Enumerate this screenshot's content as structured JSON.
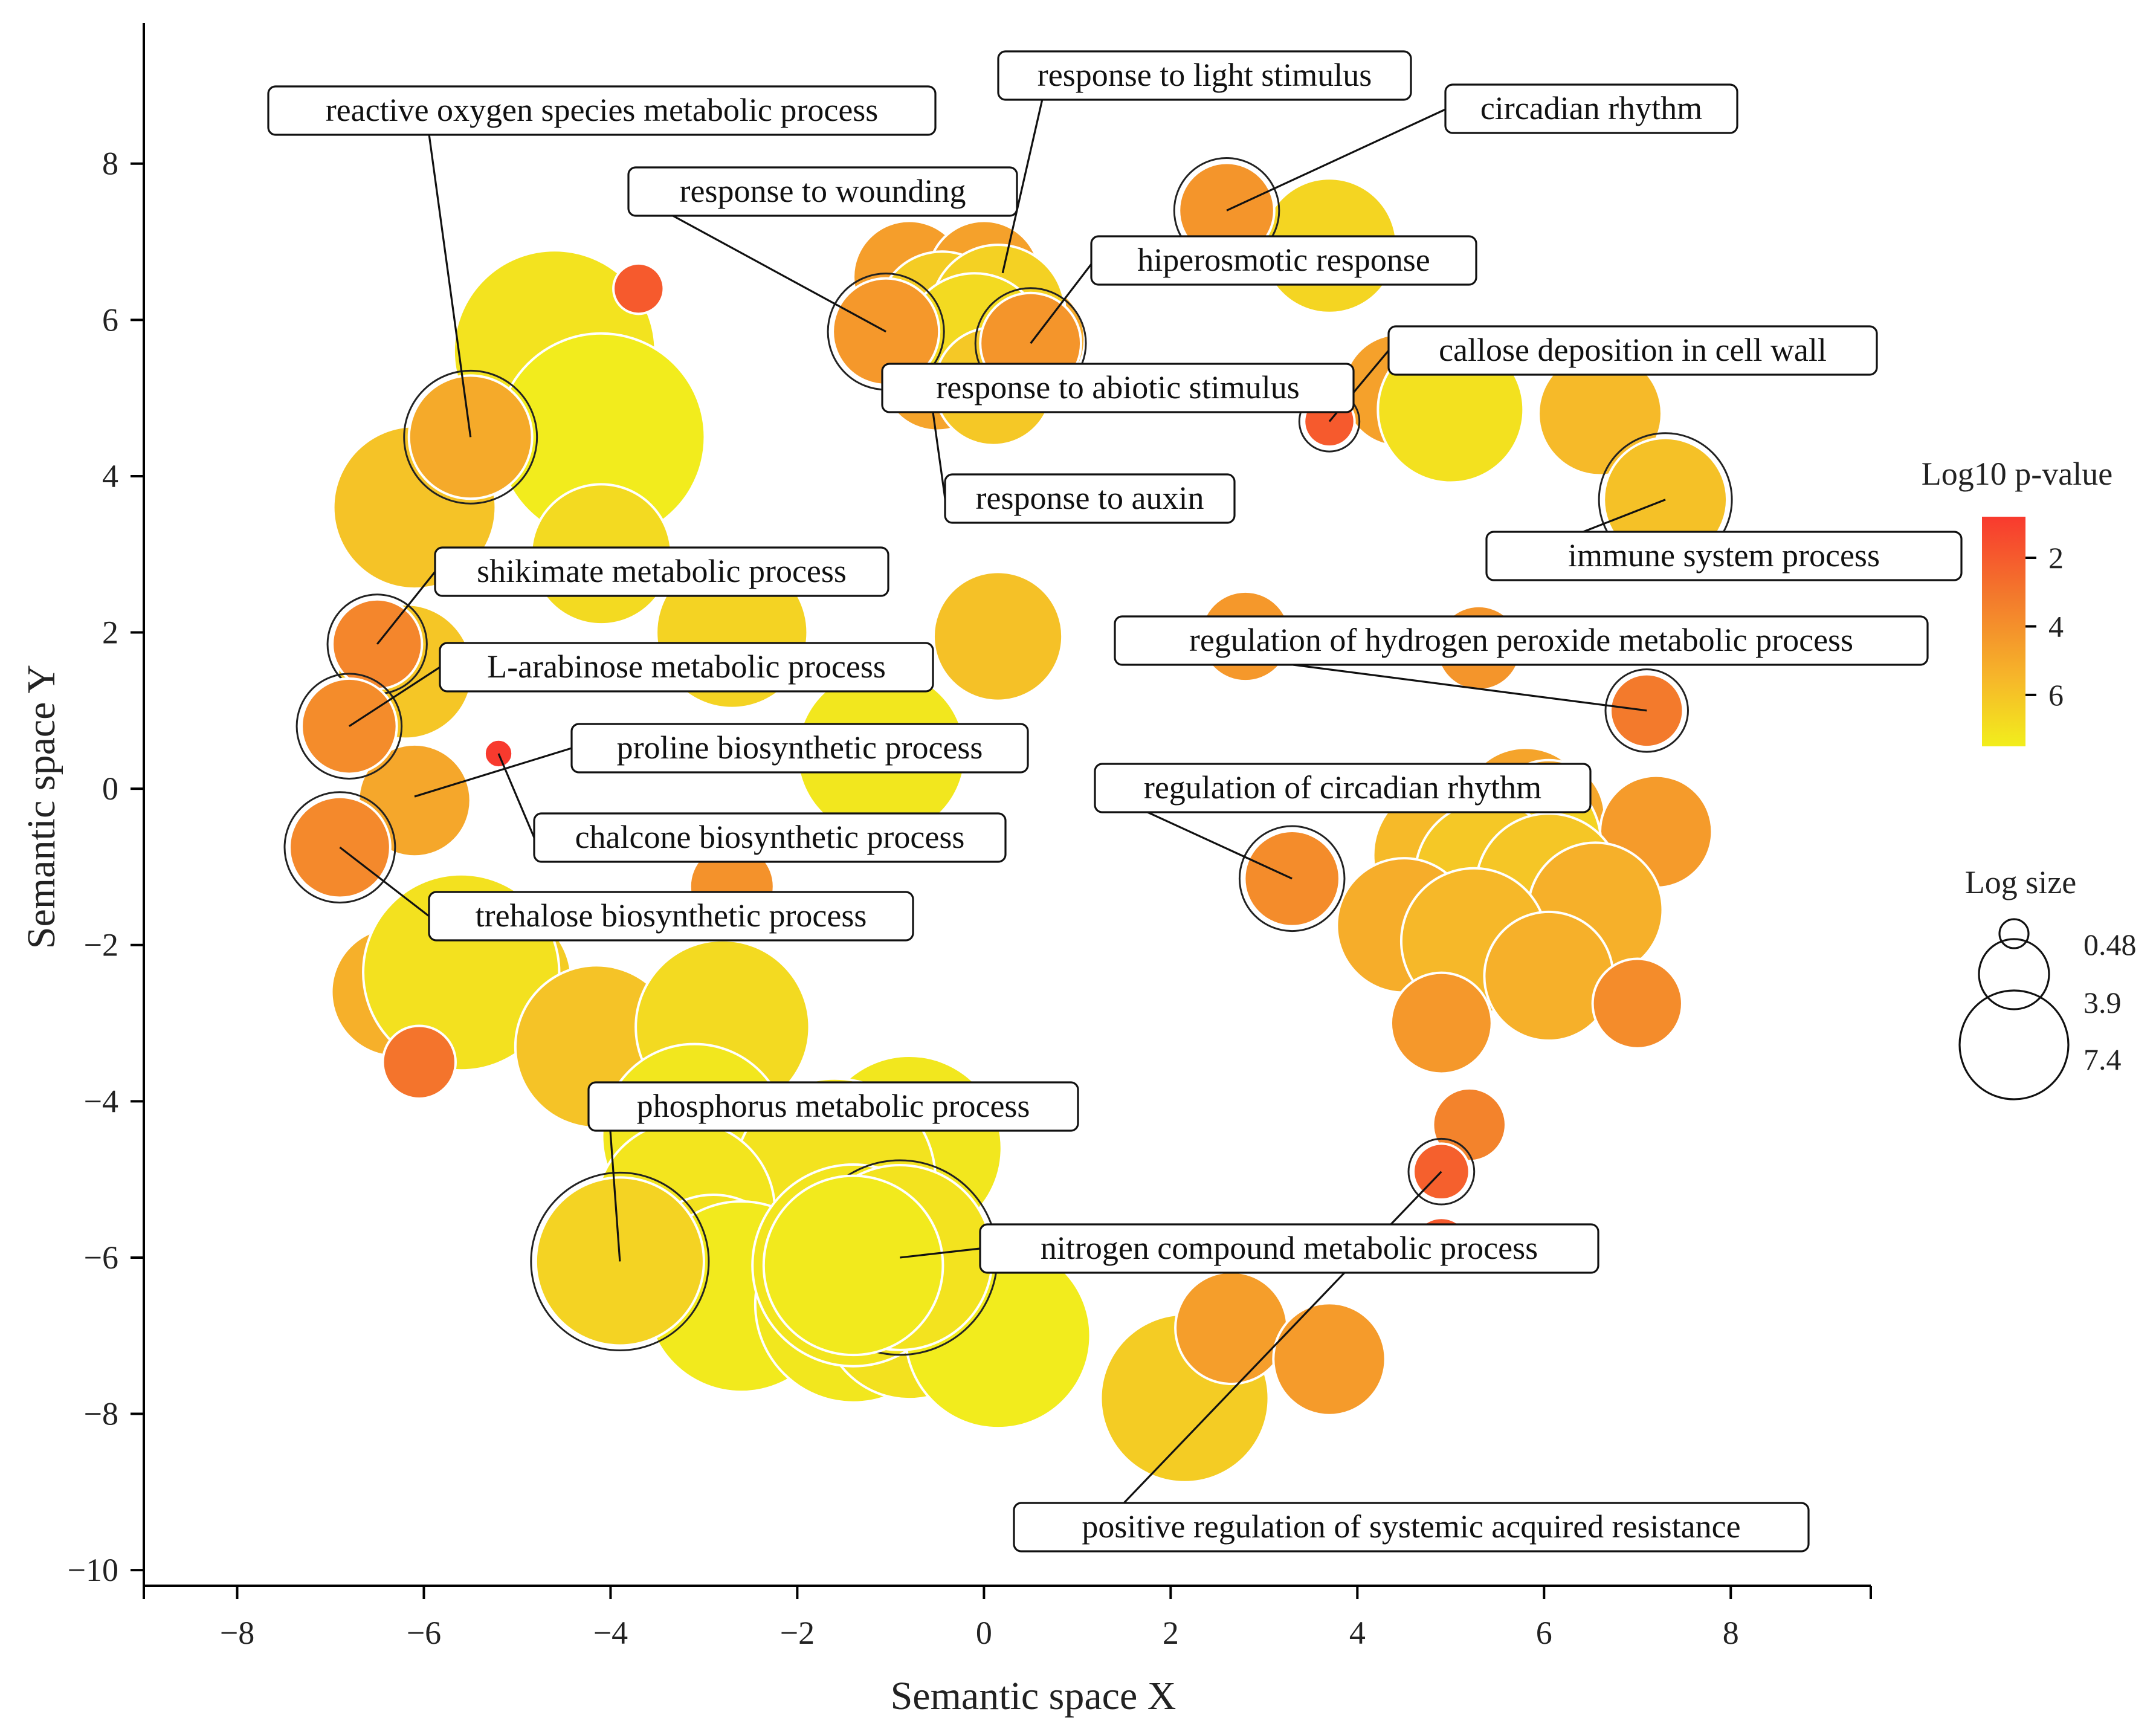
{
  "chart_data": {
    "type": "scatter",
    "subtype": "bubble",
    "xlabel": "Semantic space X",
    "ylabel": "Semantic space Y",
    "xlim": [
      -9,
      9.5
    ],
    "ylim": [
      -10.2,
      9.8
    ],
    "xticks": [
      -8,
      -6,
      -4,
      -2,
      0,
      2,
      4,
      6,
      8
    ],
    "yticks": [
      8,
      6,
      4,
      2,
      0,
      -2,
      -4,
      -6,
      -8,
      -10
    ],
    "xtick_labels": [
      "−8",
      "−6",
      "−4",
      "−2",
      "0",
      "2",
      "4",
      "6",
      "8"
    ],
    "ytick_labels": [
      "8",
      "6",
      "4",
      "2",
      "0",
      "−2",
      "−4",
      "−6",
      "−8",
      "−10"
    ],
    "color_legend": {
      "title": "Log10 p-value",
      "min": 0.8,
      "max": 7.5,
      "ticks": [
        2,
        4,
        6
      ],
      "tick_labels": [
        "2",
        "4",
        "6"
      ]
    },
    "size_legend": {
      "title": "Log size",
      "values": [
        0.48,
        3.9,
        7.4
      ],
      "labels": [
        "0.48",
        "3.9",
        "7.4"
      ]
    },
    "points": [
      {
        "x": -4.6,
        "y": 5.6,
        "r": 3.6,
        "p": 7.0
      },
      {
        "x": -4.1,
        "y": 4.5,
        "r": 3.7,
        "p": 7.4
      },
      {
        "x": -3.7,
        "y": 6.4,
        "r": 0.9,
        "p": 2.0
      },
      {
        "x": -6.1,
        "y": 3.6,
        "r": 2.9,
        "p": 5.6
      },
      {
        "x": -4.1,
        "y": 3.0,
        "r": 2.5,
        "p": 6.6
      },
      {
        "x": -2.7,
        "y": 2.0,
        "r": 2.7,
        "p": 6.3
      },
      {
        "x": 0.15,
        "y": 1.95,
        "r": 2.3,
        "p": 5.5
      },
      {
        "x": -1.1,
        "y": 0.45,
        "r": 3.0,
        "p": 7.2
      },
      {
        "x": -6.2,
        "y": 1.5,
        "r": 2.4,
        "p": 5.7
      },
      {
        "x": -6.1,
        "y": -0.15,
        "r": 2.0,
        "p": 4.5
      },
      {
        "x": -2.7,
        "y": -1.25,
        "r": 1.5,
        "p": 3.8
      },
      {
        "x": -6.3,
        "y": -2.6,
        "r": 2.3,
        "p": 4.8
      },
      {
        "x": -5.2,
        "y": -2.45,
        "r": 2.6,
        "p": 6.0
      },
      {
        "x": -5.6,
        "y": -2.35,
        "r": 3.5,
        "p": 6.9
      },
      {
        "x": -6.05,
        "y": -3.5,
        "r": 1.3,
        "p": 2.8
      },
      {
        "x": -4.15,
        "y": -3.3,
        "r": 2.9,
        "p": 5.6
      },
      {
        "x": -2.8,
        "y": -3.05,
        "r": 3.1,
        "p": 6.6
      },
      {
        "x": -3.1,
        "y": -4.45,
        "r": 3.3,
        "p": 7.2
      },
      {
        "x": -0.8,
        "y": -4.6,
        "r": 3.3,
        "p": 7.2
      },
      {
        "x": -1.6,
        "y": -5.0,
        "r": 3.6,
        "p": 7.0
      },
      {
        "x": -3.2,
        "y": -5.4,
        "r": 3.2,
        "p": 7.1
      },
      {
        "x": -2.9,
        "y": -6.2,
        "r": 2.8,
        "p": 6.9
      },
      {
        "x": -2.6,
        "y": -6.5,
        "r": 3.4,
        "p": 7.3
      },
      {
        "x": -1.4,
        "y": -6.6,
        "r": 3.5,
        "p": 7.2
      },
      {
        "x": -0.8,
        "y": -6.7,
        "r": 3.1,
        "p": 6.9
      },
      {
        "x": -1.4,
        "y": -6.1,
        "r": 3.6,
        "p": 7.1
      },
      {
        "x": 0.15,
        "y": -7.0,
        "r": 3.3,
        "p": 7.4
      },
      {
        "x": 2.15,
        "y": -7.8,
        "r": 3.0,
        "p": 6.0
      },
      {
        "x": 2.65,
        "y": -6.9,
        "r": 2.0,
        "p": 4.2
      },
      {
        "x": 3.7,
        "y": -7.3,
        "r": 2.0,
        "p": 4.1
      },
      {
        "x": 5.2,
        "y": -4.3,
        "r": 1.3,
        "p": 3.3
      },
      {
        "x": 4.9,
        "y": -5.85,
        "r": 1.0,
        "p": 2.0
      },
      {
        "x": -0.8,
        "y": 6.55,
        "r": 2.0,
        "p": 4.2
      },
      {
        "x": 0.0,
        "y": 6.55,
        "r": 2.0,
        "p": 4.3
      },
      {
        "x": -0.3,
        "y": 5.95,
        "r": 2.2,
        "p": 5.0
      },
      {
        "x": 0.45,
        "y": 5.75,
        "r": 2.1,
        "p": 4.6
      },
      {
        "x": -0.5,
        "y": 5.3,
        "r": 2.0,
        "p": 4.4
      },
      {
        "x": -0.45,
        "y": 6.05,
        "r": 2.3,
        "p": 6.0
      },
      {
        "x": 0.15,
        "y": 6.1,
        "r": 2.4,
        "p": 6.2
      },
      {
        "x": -0.1,
        "y": 5.7,
        "r": 2.5,
        "p": 6.6
      },
      {
        "x": 0.1,
        "y": 5.15,
        "r": 2.1,
        "p": 5.8
      },
      {
        "x": 3.7,
        "y": 6.95,
        "r": 2.4,
        "p": 6.4
      },
      {
        "x": 4.45,
        "y": 5.1,
        "r": 2.0,
        "p": 4.3
      },
      {
        "x": 5.0,
        "y": 4.85,
        "r": 2.6,
        "p": 6.9
      },
      {
        "x": 6.6,
        "y": 4.8,
        "r": 2.2,
        "p": 5.2
      },
      {
        "x": 2.8,
        "y": 1.95,
        "r": 1.6,
        "p": 4.0
      },
      {
        "x": 5.3,
        "y": 1.8,
        "r": 1.5,
        "p": 3.9
      },
      {
        "x": 5.8,
        "y": -0.3,
        "r": 2.3,
        "p": 4.4
      },
      {
        "x": 6.05,
        "y": -0.35,
        "r": 2.0,
        "p": 4.5
      },
      {
        "x": 7.2,
        "y": -0.55,
        "r": 2.0,
        "p": 4.1
      },
      {
        "x": 4.95,
        "y": -0.85,
        "r": 2.6,
        "p": 5.2
      },
      {
        "x": 5.8,
        "y": -0.7,
        "r": 2.7,
        "p": 6.3
      },
      {
        "x": 5.4,
        "y": -1.1,
        "r": 2.6,
        "p": 5.8
      },
      {
        "x": 6.05,
        "y": -1.25,
        "r": 2.6,
        "p": 5.7
      },
      {
        "x": 6.55,
        "y": -1.55,
        "r": 2.4,
        "p": 4.8
      },
      {
        "x": 4.5,
        "y": -1.75,
        "r": 2.4,
        "p": 4.7
      },
      {
        "x": 5.25,
        "y": -1.95,
        "r": 2.6,
        "p": 5.1
      },
      {
        "x": 6.05,
        "y": -2.4,
        "r": 2.3,
        "p": 4.8
      },
      {
        "x": 7.0,
        "y": -2.75,
        "r": 1.6,
        "p": 3.6
      },
      {
        "x": 4.9,
        "y": -3.0,
        "r": 1.8,
        "p": 4.0
      },
      {
        "x": -5.5,
        "y": 4.5,
        "r": 2.2,
        "p": 4.6,
        "ringed": true
      },
      {
        "x": -6.5,
        "y": 1.85,
        "r": 1.6,
        "p": 3.4,
        "ringed": true
      },
      {
        "x": -6.8,
        "y": 0.8,
        "r": 1.7,
        "p": 3.6,
        "ringed": true
      },
      {
        "x": -6.9,
        "y": -0.75,
        "r": 1.8,
        "p": 3.5,
        "ringed": true
      },
      {
        "x": -5.2,
        "y": 0.45,
        "r": 0.5,
        "p": 1.0
      },
      {
        "x": -1.05,
        "y": 5.85,
        "r": 1.9,
        "p": 4.0,
        "ringed": true
      },
      {
        "x": 0.5,
        "y": 5.7,
        "r": 1.8,
        "p": 3.9,
        "ringed": true
      },
      {
        "x": 2.6,
        "y": 7.4,
        "r": 1.7,
        "p": 3.9,
        "ringed": true
      },
      {
        "x": 3.7,
        "y": 4.7,
        "r": 0.9,
        "p": 2.0,
        "ringed": true
      },
      {
        "x": 7.3,
        "y": 3.7,
        "r": 2.2,
        "p": 5.5,
        "ringed": true
      },
      {
        "x": 7.1,
        "y": 1.0,
        "r": 1.3,
        "p": 3.0,
        "ringed": true
      },
      {
        "x": 3.3,
        "y": -1.15,
        "r": 1.7,
        "p": 3.6,
        "ringed": true
      },
      {
        "x": -3.9,
        "y": -6.05,
        "r": 3.0,
        "p": 6.3,
        "ringed": true
      },
      {
        "x": -0.9,
        "y": -6.0,
        "r": 3.3,
        "p": 7.0,
        "ringed": true
      },
      {
        "x": -1.4,
        "y": -6.1,
        "r": 3.2,
        "p": 7.3
      },
      {
        "x": 4.9,
        "y": -4.9,
        "r": 1.0,
        "p": 2.2,
        "ringed": true
      }
    ],
    "annotations": [
      {
        "text": "reactive oxygen species metabolic process",
        "x": -5.5,
        "y": 4.5
      },
      {
        "text": "response to light stimulus",
        "x": 0.2,
        "y": 6.6
      },
      {
        "text": "circadian rhythm",
        "x": 2.6,
        "y": 7.4
      },
      {
        "text": "response to wounding",
        "x": -1.05,
        "y": 5.85
      },
      {
        "text": "hiperosmotic response",
        "x": 0.5,
        "y": 5.7
      },
      {
        "text": "callose deposition in cell wall",
        "x": 3.7,
        "y": 4.7
      },
      {
        "text": "response to abiotic stimulus",
        "x": -0.6,
        "y": 5.4
      },
      {
        "text": "response to auxin",
        "x": -0.55,
        "y": 4.85
      },
      {
        "text": "immune system process",
        "x": 7.3,
        "y": 3.7
      },
      {
        "text": "shikimate metabolic process",
        "x": -6.5,
        "y": 1.85
      },
      {
        "text": "regulation of hydrogen peroxide metabolic process",
        "x": 7.1,
        "y": 1.0
      },
      {
        "text": "L-arabinose metabolic process",
        "x": -6.8,
        "y": 0.8
      },
      {
        "text": "proline biosynthetic process",
        "x": -6.1,
        "y": -0.1
      },
      {
        "text": "chalcone biosynthetic process",
        "x": -5.2,
        "y": 0.45
      },
      {
        "text": "regulation of circadian rhythm",
        "x": 3.3,
        "y": -1.15
      },
      {
        "text": "trehalose biosynthetic process",
        "x": -6.9,
        "y": -0.75
      },
      {
        "text": "phosphorus metabolic process",
        "x": -3.9,
        "y": -6.05
      },
      {
        "text": "nitrogen compound metabolic process",
        "x": -0.9,
        "y": -6.0
      },
      {
        "text": "positive regulation of systemic acquired resistance",
        "x": 4.9,
        "y": -4.9
      }
    ]
  }
}
